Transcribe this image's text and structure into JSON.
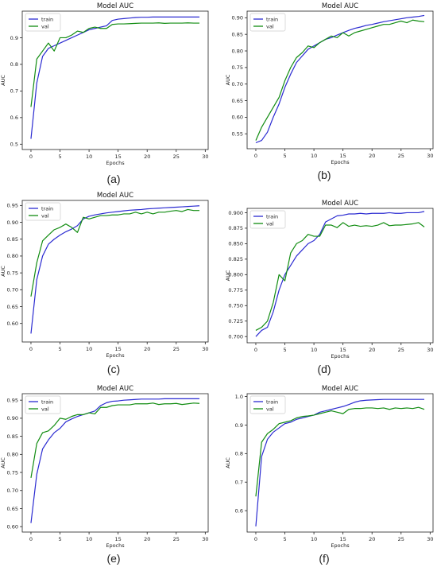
{
  "colors": {
    "train": "#2b2bd1",
    "val": "#118c11",
    "axis": "#222222"
  },
  "chart_data": [
    {
      "type": "line",
      "title": "Model AUC",
      "xlabel": "Epochs",
      "ylabel": "AUC",
      "caption": "(a)",
      "legend": "top-left",
      "grid": false,
      "xlim": [
        -1.5,
        30.5
      ],
      "ylim": [
        0.48,
        1.0
      ],
      "xticks": [
        "0",
        "5",
        "10",
        "15",
        "20",
        "25",
        "30"
      ],
      "yticks": [
        "0.5",
        "0.6",
        "0.7",
        "0.8",
        "0.9"
      ],
      "x": [
        0,
        1,
        2,
        3,
        4,
        5,
        6,
        7,
        8,
        9,
        10,
        11,
        12,
        13,
        14,
        15,
        16,
        17,
        18,
        19,
        20,
        21,
        22,
        23,
        24,
        25,
        26,
        27,
        28,
        29
      ],
      "series": [
        {
          "name": "train",
          "values": [
            0.52,
            0.73,
            0.83,
            0.86,
            0.87,
            0.88,
            0.89,
            0.9,
            0.91,
            0.92,
            0.93,
            0.935,
            0.94,
            0.945,
            0.965,
            0.97,
            0.972,
            0.974,
            0.976,
            0.977,
            0.977,
            0.978,
            0.978,
            0.978,
            0.978,
            0.978,
            0.978,
            0.978,
            0.978,
            0.978
          ]
        },
        {
          "name": "val",
          "values": [
            0.64,
            0.82,
            0.85,
            0.88,
            0.85,
            0.9,
            0.9,
            0.91,
            0.925,
            0.92,
            0.935,
            0.94,
            0.935,
            0.935,
            0.95,
            0.952,
            0.952,
            0.953,
            0.954,
            0.955,
            0.955,
            0.955,
            0.956,
            0.954,
            0.955,
            0.955,
            0.955,
            0.956,
            0.955,
            0.955
          ]
        }
      ]
    },
    {
      "type": "line",
      "title": "Model AUC",
      "xlabel": "Epochs",
      "ylabel": "AUC",
      "caption": "(b)",
      "legend": "top-left",
      "grid": false,
      "xlim": [
        -1.5,
        30.5
      ],
      "ylim": [
        0.505,
        0.92
      ],
      "xticks": [
        "0",
        "5",
        "10",
        "15",
        "20",
        "25",
        "30"
      ],
      "yticks": [
        "0.55",
        "0.60",
        "0.65",
        "0.70",
        "0.75",
        "0.80",
        "0.85",
        "0.90"
      ],
      "x": [
        0,
        1,
        2,
        3,
        4,
        5,
        6,
        7,
        8,
        9,
        10,
        11,
        12,
        13,
        14,
        15,
        16,
        17,
        18,
        19,
        20,
        21,
        22,
        23,
        24,
        25,
        26,
        27,
        28,
        29
      ],
      "series": [
        {
          "name": "train",
          "values": [
            0.523,
            0.53,
            0.555,
            0.6,
            0.64,
            0.69,
            0.73,
            0.765,
            0.785,
            0.805,
            0.815,
            0.825,
            0.835,
            0.84,
            0.848,
            0.855,
            0.862,
            0.868,
            0.872,
            0.877,
            0.88,
            0.884,
            0.888,
            0.891,
            0.894,
            0.897,
            0.9,
            0.902,
            0.904,
            0.907
          ]
        },
        {
          "name": "val",
          "values": [
            0.53,
            0.57,
            0.6,
            0.63,
            0.66,
            0.71,
            0.75,
            0.78,
            0.795,
            0.815,
            0.81,
            0.825,
            0.835,
            0.845,
            0.84,
            0.855,
            0.845,
            0.855,
            0.86,
            0.865,
            0.87,
            0.875,
            0.88,
            0.88,
            0.885,
            0.89,
            0.885,
            0.893,
            0.89,
            0.888
          ]
        }
      ]
    },
    {
      "type": "line",
      "title": "Model AUC",
      "xlabel": "Epochs",
      "ylabel": "AUC",
      "caption": "(c)",
      "legend": "top-left",
      "grid": false,
      "xlim": [
        -1.5,
        30.5
      ],
      "ylim": [
        0.545,
        0.965
      ],
      "xticks": [
        "0",
        "5",
        "10",
        "15",
        "20",
        "25",
        "30"
      ],
      "yticks": [
        "0.60",
        "0.65",
        "0.70",
        "0.75",
        "0.80",
        "0.85",
        "0.90",
        "0.95"
      ],
      "x": [
        0,
        1,
        2,
        3,
        4,
        5,
        6,
        7,
        8,
        9,
        10,
        11,
        12,
        13,
        14,
        15,
        16,
        17,
        18,
        19,
        20,
        21,
        22,
        23,
        24,
        25,
        26,
        27,
        28,
        29
      ],
      "series": [
        {
          "name": "train",
          "values": [
            0.57,
            0.73,
            0.8,
            0.835,
            0.85,
            0.862,
            0.872,
            0.88,
            0.89,
            0.91,
            0.918,
            0.922,
            0.925,
            0.928,
            0.93,
            0.932,
            0.934,
            0.936,
            0.937,
            0.938,
            0.94,
            0.941,
            0.942,
            0.943,
            0.944,
            0.945,
            0.946,
            0.947,
            0.948,
            0.949
          ]
        },
        {
          "name": "val",
          "values": [
            0.68,
            0.78,
            0.845,
            0.862,
            0.878,
            0.885,
            0.895,
            0.885,
            0.87,
            0.915,
            0.91,
            0.915,
            0.92,
            0.92,
            0.922,
            0.922,
            0.925,
            0.925,
            0.93,
            0.925,
            0.93,
            0.925,
            0.93,
            0.93,
            0.933,
            0.935,
            0.932,
            0.938,
            0.935,
            0.935
          ]
        }
      ]
    },
    {
      "type": "line",
      "title": "Model AUC",
      "xlabel": "Epochs",
      "ylabel": "AUC",
      "caption": "(d)",
      "legend": "top-left",
      "grid": false,
      "xlim": [
        -1.5,
        30.5
      ],
      "ylim": [
        0.69,
        0.907
      ],
      "xticks": [
        "0",
        "5",
        "10",
        "15",
        "20",
        "25",
        "30"
      ],
      "yticks": [
        "0.700",
        "0.725",
        "0.750",
        "0.775",
        "0.800",
        "0.825",
        "0.850",
        "0.875",
        "0.900"
      ],
      "x": [
        0,
        1,
        2,
        3,
        4,
        5,
        6,
        7,
        8,
        9,
        10,
        11,
        12,
        13,
        14,
        15,
        16,
        17,
        18,
        19,
        20,
        21,
        22,
        23,
        24,
        25,
        26,
        27,
        28,
        29
      ],
      "series": [
        {
          "name": "train",
          "values": [
            0.7,
            0.71,
            0.715,
            0.74,
            0.775,
            0.8,
            0.815,
            0.83,
            0.84,
            0.85,
            0.855,
            0.865,
            0.885,
            0.89,
            0.895,
            0.896,
            0.898,
            0.898,
            0.899,
            0.898,
            0.899,
            0.899,
            0.899,
            0.9,
            0.899,
            0.899,
            0.9,
            0.9,
            0.9,
            0.902
          ]
        },
        {
          "name": "val",
          "values": [
            0.71,
            0.715,
            0.725,
            0.755,
            0.8,
            0.79,
            0.835,
            0.85,
            0.855,
            0.865,
            0.862,
            0.862,
            0.88,
            0.88,
            0.876,
            0.884,
            0.878,
            0.88,
            0.878,
            0.879,
            0.878,
            0.88,
            0.884,
            0.879,
            0.88,
            0.88,
            0.881,
            0.882,
            0.884,
            0.877
          ]
        }
      ]
    },
    {
      "type": "line",
      "title": "Model AUC",
      "xlabel": "Epochs",
      "ylabel": "AUC",
      "caption": "(e)",
      "legend": "top-left",
      "grid": false,
      "xlim": [
        -1.5,
        30.5
      ],
      "ylim": [
        0.585,
        0.968
      ],
      "xticks": [
        "0",
        "5",
        "10",
        "15",
        "20",
        "25",
        "30"
      ],
      "yticks": [
        "0.60",
        "0.65",
        "0.70",
        "0.75",
        "0.80",
        "0.85",
        "0.90",
        "0.95"
      ],
      "x": [
        0,
        1,
        2,
        3,
        4,
        5,
        6,
        7,
        8,
        9,
        10,
        11,
        12,
        13,
        14,
        15,
        16,
        17,
        18,
        19,
        20,
        21,
        22,
        23,
        24,
        25,
        26,
        27,
        28,
        29
      ],
      "series": [
        {
          "name": "train",
          "values": [
            0.61,
            0.745,
            0.815,
            0.84,
            0.86,
            0.872,
            0.89,
            0.898,
            0.905,
            0.91,
            0.915,
            0.92,
            0.935,
            0.943,
            0.947,
            0.948,
            0.95,
            0.951,
            0.952,
            0.953,
            0.953,
            0.953,
            0.953,
            0.954,
            0.954,
            0.954,
            0.954,
            0.954,
            0.954,
            0.954
          ]
        },
        {
          "name": "val",
          "values": [
            0.735,
            0.83,
            0.86,
            0.865,
            0.88,
            0.9,
            0.897,
            0.905,
            0.91,
            0.91,
            0.915,
            0.912,
            0.93,
            0.93,
            0.935,
            0.937,
            0.937,
            0.937,
            0.94,
            0.94,
            0.94,
            0.942,
            0.938,
            0.94,
            0.94,
            0.941,
            0.938,
            0.94,
            0.942,
            0.941
          ]
        }
      ]
    },
    {
      "type": "line",
      "title": "Model AUC",
      "xlabel": "Epochs",
      "ylabel": "AUC",
      "caption": "(f)",
      "legend": "top-left",
      "grid": false,
      "xlim": [
        -1.5,
        30.5
      ],
      "ylim": [
        0.525,
        1.01
      ],
      "xticks": [
        "0",
        "5",
        "10",
        "15",
        "20",
        "25",
        "30"
      ],
      "yticks": [
        "0.6",
        "0.7",
        "0.8",
        "0.9",
        "1.0"
      ],
      "x": [
        0,
        1,
        2,
        3,
        4,
        5,
        6,
        7,
        8,
        9,
        10,
        11,
        12,
        13,
        14,
        15,
        16,
        17,
        18,
        19,
        20,
        21,
        22,
        23,
        24,
        25,
        26,
        27,
        28,
        29
      ],
      "series": [
        {
          "name": "train",
          "values": [
            0.545,
            0.79,
            0.85,
            0.875,
            0.89,
            0.905,
            0.91,
            0.92,
            0.925,
            0.93,
            0.935,
            0.945,
            0.95,
            0.955,
            0.96,
            0.965,
            0.972,
            0.98,
            0.985,
            0.987,
            0.988,
            0.989,
            0.99,
            0.99,
            0.99,
            0.99,
            0.99,
            0.99,
            0.99,
            0.99
          ]
        },
        {
          "name": "val",
          "values": [
            0.65,
            0.84,
            0.87,
            0.885,
            0.905,
            0.91,
            0.915,
            0.925,
            0.93,
            0.932,
            0.935,
            0.94,
            0.945,
            0.95,
            0.945,
            0.94,
            0.955,
            0.958,
            0.958,
            0.96,
            0.96,
            0.958,
            0.96,
            0.955,
            0.96,
            0.958,
            0.96,
            0.958,
            0.962,
            0.955
          ]
        }
      ]
    }
  ]
}
